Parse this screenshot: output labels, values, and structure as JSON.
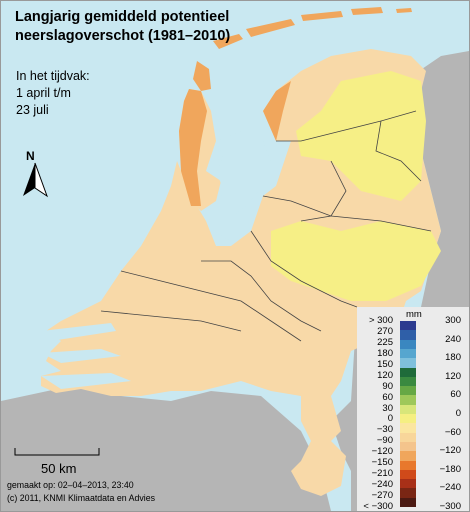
{
  "title_line1": "Langjarig gemiddeld potentieel",
  "title_line2": "neerslagoverschot (1981–2010)",
  "period_label": "In het tijdvak:",
  "period_start": "1 april t/m",
  "period_end": "23 juli",
  "north_label": "N",
  "scale_label": "50 km",
  "footer_made": "gemaakt op: 02–04–2013, 23:40",
  "footer_copyright": "(c) 2011, KNMI Klimaatdata en Advies",
  "legend": {
    "unit": "mm",
    "left_labels": [
      "> 300",
      "270",
      "225",
      "180",
      "150",
      "120",
      "90",
      "60",
      "30",
      "0",
      "−30",
      "−90",
      "−120",
      "−150",
      "−210",
      "−240",
      "−270",
      "< −300"
    ],
    "right_labels": [
      "300",
      "240",
      "180",
      "120",
      "60",
      "0",
      "−60",
      "−120",
      "−180",
      "−240",
      "−300"
    ],
    "swatch_colors": [
      "#2c3b8f",
      "#2f5fa8",
      "#3a87c0",
      "#56a6cf",
      "#7fc0dc",
      "#1f6b3a",
      "#3a8a40",
      "#66a845",
      "#9ec85a",
      "#d8e67a",
      "#f5ef82",
      "#fbe6a0",
      "#f8d69a",
      "#f4c48c",
      "#f0a65c",
      "#e8782c",
      "#d04a1a",
      "#a83018",
      "#7a2614",
      "#4c1a12"
    ]
  },
  "colors": {
    "sea": "#c9e8f1",
    "land_base": "#f8d9a8",
    "dry_orange": "#f0a65c",
    "light_yellow": "#f6ef86",
    "neighbour_grey": "#b5b5b5",
    "water": "#c9e8f1"
  }
}
